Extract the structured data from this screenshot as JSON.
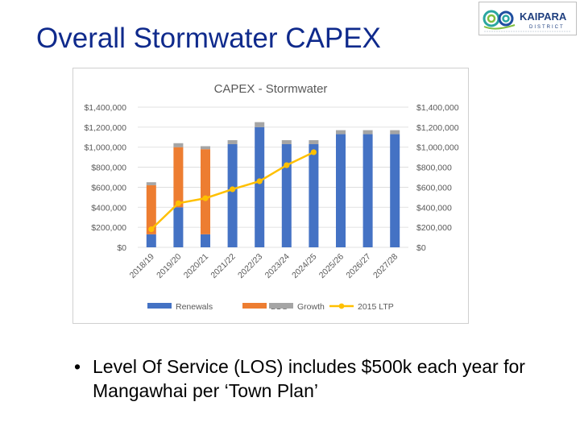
{
  "slide": {
    "title": "Overall Stormwater CAPEX",
    "bullet": "Level Of Service (LOS) includes $500k each year for Mangawhai per ‘Town Plan’"
  },
  "logo": {
    "text": "KAIPARA",
    "subtext": "DISTRICT",
    "icon": "spiral-wave-logo-icon"
  },
  "chart_data": {
    "type": "bar",
    "title": "CAPEX - Stormwater",
    "categories": [
      "2018/19",
      "2019/20",
      "2020/21",
      "2021/22",
      "2022/23",
      "2023/24",
      "2024/25",
      "2025/26",
      "2026/27",
      "2027/28"
    ],
    "series": [
      {
        "name": "Renewals",
        "type": "bar",
        "stack": "capex",
        "color": "#4472c4",
        "values": [
          130000,
          400000,
          130000,
          1030000,
          1200000,
          1030000,
          1030000,
          1130000,
          1130000,
          1130000
        ]
      },
      {
        "name": "LOS",
        "type": "bar",
        "stack": "capex",
        "color": "#ed7d31",
        "values": [
          490000,
          600000,
          850000,
          0,
          0,
          0,
          0,
          0,
          0,
          0
        ]
      },
      {
        "name": "Growth",
        "type": "bar",
        "stack": "capex",
        "color": "#a5a5a5",
        "values": [
          30000,
          40000,
          30000,
          40000,
          50000,
          40000,
          40000,
          40000,
          40000,
          40000
        ]
      },
      {
        "name": "2015 LTP",
        "type": "line",
        "color": "#ffc000",
        "values": [
          180000,
          440000,
          490000,
          580000,
          660000,
          820000,
          950000,
          null,
          null,
          null
        ]
      }
    ],
    "ylim": [
      0,
      1400000
    ],
    "yticks": [
      "$0",
      "$200,000",
      "$400,000",
      "$600,000",
      "$800,000",
      "$1,000,000",
      "$1,200,000",
      "$1,400,000"
    ],
    "secondary_yticks": [
      "$0",
      "$200,000",
      "$400,000",
      "$600,000",
      "$800,000",
      "$1,000,000",
      "$1,200,000",
      "$1,400,000"
    ],
    "grid": true,
    "legend_position": "bottom"
  }
}
